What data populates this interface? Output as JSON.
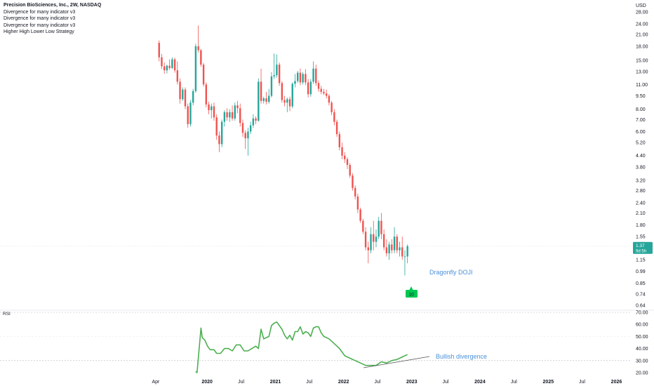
{
  "legend": {
    "title": "Precision BioSciences, Inc., 2W, NASDAQ",
    "indicators": [
      "Divergence for many indicator v3",
      "Divergence for many indicator v3",
      "Divergence for many indicator v3",
      "Higher High Lower Low Strategy"
    ]
  },
  "currency": "USD",
  "price_ticks": [
    "28.00",
    "24.00",
    "21.00",
    "18.00",
    "15.00",
    "13.00",
    "11.00",
    "9.50",
    "8.00",
    "7.00",
    "6.00",
    "5.20",
    "4.40",
    "3.80",
    "3.20",
    "2.80",
    "2.40",
    "2.10",
    "1.80",
    "1.55",
    "1.15",
    "0.99",
    "0.85",
    "0.74",
    "0.64"
  ],
  "price_badge": {
    "value": "1.37",
    "countdown": "9d 5h",
    "color": "#26a69a"
  },
  "rsi": {
    "label": "RSI",
    "ticks": [
      "70.00",
      "60.00",
      "50.00",
      "40.00",
      "30.00",
      "20.00"
    ],
    "line_color": "#4caf50"
  },
  "time_ticks": [
    "Apr",
    "2020",
    "Jul",
    "2021",
    "Jul",
    "2022",
    "Jul",
    "2023",
    "Jul",
    "2024",
    "Jul",
    "2025",
    "Jul",
    "2026"
  ],
  "bold_time_ticks": [
    "2020",
    "2021",
    "2022",
    "2023",
    "2024",
    "2025",
    "2026"
  ],
  "annotations": {
    "doji": "Dragonfly DOJI",
    "divergence": "Bullish divergence",
    "signal_badge": "10",
    "annotation_color": "#4a90d9",
    "signal_color": "#00c853"
  },
  "colors": {
    "up": "#26a69a",
    "down": "#ef5350"
  },
  "chart_data": [
    {
      "type": "candlestick",
      "title": "Precision BioSciences, Inc., 2W, NASDAQ",
      "interval": "2W",
      "y_scale": "log",
      "ylabel": "USD",
      "x_range": [
        "2019-02",
        "2026-05"
      ],
      "y_range": [
        0.62,
        30
      ],
      "last_close": 1.37,
      "candles": [
        {
          "t": "2019-04-19",
          "o": 18.8,
          "h": 19.4,
          "l": 14.8,
          "c": 15.6
        },
        {
          "t": "2019-05-03",
          "o": 15.6,
          "h": 16.3,
          "l": 13.4,
          "c": 13.9
        },
        {
          "t": "2019-05-17",
          "o": 13.9,
          "h": 14.6,
          "l": 12.6,
          "c": 13.2
        },
        {
          "t": "2019-05-31",
          "o": 13.2,
          "h": 14.2,
          "l": 12.7,
          "c": 14.0
        },
        {
          "t": "2019-06-14",
          "o": 14.0,
          "h": 15.2,
          "l": 13.3,
          "c": 13.6
        },
        {
          "t": "2019-06-28",
          "o": 13.6,
          "h": 15.6,
          "l": 13.4,
          "c": 15.2
        },
        {
          "t": "2019-07-12",
          "o": 15.2,
          "h": 15.5,
          "l": 12.8,
          "c": 13.2
        },
        {
          "t": "2019-07-26",
          "o": 13.2,
          "h": 14.8,
          "l": 11.0,
          "c": 11.4
        },
        {
          "t": "2019-08-09",
          "o": 11.4,
          "h": 11.9,
          "l": 8.6,
          "c": 9.1
        },
        {
          "t": "2019-08-23",
          "o": 9.1,
          "h": 10.6,
          "l": 8.9,
          "c": 10.3
        },
        {
          "t": "2019-09-06",
          "o": 10.3,
          "h": 10.6,
          "l": 8.0,
          "c": 8.3
        },
        {
          "t": "2019-09-20",
          "o": 8.3,
          "h": 8.6,
          "l": 6.3,
          "c": 6.6
        },
        {
          "t": "2019-10-04",
          "o": 6.6,
          "h": 9.0,
          "l": 6.4,
          "c": 8.7
        },
        {
          "t": "2019-10-18",
          "o": 8.7,
          "h": 10.4,
          "l": 8.4,
          "c": 10.1
        },
        {
          "t": "2019-11-01",
          "o": 10.1,
          "h": 18.6,
          "l": 9.9,
          "c": 18.0
        },
        {
          "t": "2019-11-15",
          "o": 18.0,
          "h": 23.5,
          "l": 16.6,
          "c": 17.1
        },
        {
          "t": "2019-11-29",
          "o": 17.1,
          "h": 17.4,
          "l": 13.8,
          "c": 14.2
        },
        {
          "t": "2019-12-13",
          "o": 14.2,
          "h": 14.5,
          "l": 10.7,
          "c": 11.0
        },
        {
          "t": "2019-12-27",
          "o": 11.0,
          "h": 11.3,
          "l": 8.2,
          "c": 8.5
        },
        {
          "t": "2020-01-10",
          "o": 8.5,
          "h": 8.8,
          "l": 7.5,
          "c": 7.9
        },
        {
          "t": "2020-01-24",
          "o": 7.9,
          "h": 8.6,
          "l": 7.1,
          "c": 8.3
        },
        {
          "t": "2020-02-07",
          "o": 8.3,
          "h": 8.7,
          "l": 6.9,
          "c": 7.2
        },
        {
          "t": "2020-02-21",
          "o": 7.2,
          "h": 7.5,
          "l": 5.4,
          "c": 5.7
        },
        {
          "t": "2020-03-06",
          "o": 5.7,
          "h": 6.0,
          "l": 4.6,
          "c": 5.1
        },
        {
          "t": "2020-03-20",
          "o": 5.1,
          "h": 7.0,
          "l": 4.9,
          "c": 6.8
        },
        {
          "t": "2020-04-03",
          "o": 6.8,
          "h": 7.9,
          "l": 6.4,
          "c": 7.7
        },
        {
          "t": "2020-04-17",
          "o": 7.7,
          "h": 8.1,
          "l": 6.9,
          "c": 7.2
        },
        {
          "t": "2020-05-01",
          "o": 7.2,
          "h": 8.0,
          "l": 6.8,
          "c": 7.7
        },
        {
          "t": "2020-05-15",
          "o": 7.7,
          "h": 8.4,
          "l": 6.9,
          "c": 7.1
        },
        {
          "t": "2020-05-29",
          "o": 7.1,
          "h": 8.7,
          "l": 6.9,
          "c": 8.4
        },
        {
          "t": "2020-06-12",
          "o": 8.4,
          "h": 8.9,
          "l": 7.6,
          "c": 8.1
        },
        {
          "t": "2020-06-26",
          "o": 8.1,
          "h": 8.6,
          "l": 6.4,
          "c": 6.7
        },
        {
          "t": "2020-07-10",
          "o": 6.7,
          "h": 7.0,
          "l": 5.6,
          "c": 5.9
        },
        {
          "t": "2020-07-24",
          "o": 5.9,
          "h": 6.1,
          "l": 4.8,
          "c": 5.5
        },
        {
          "t": "2020-08-07",
          "o": 5.5,
          "h": 6.3,
          "l": 4.4,
          "c": 6.0
        },
        {
          "t": "2020-08-21",
          "o": 6.0,
          "h": 6.8,
          "l": 5.8,
          "c": 6.5
        },
        {
          "t": "2020-09-04",
          "o": 6.5,
          "h": 7.5,
          "l": 6.3,
          "c": 7.1
        },
        {
          "t": "2020-09-18",
          "o": 7.1,
          "h": 7.3,
          "l": 6.6,
          "c": 6.9
        },
        {
          "t": "2020-10-02",
          "o": 6.9,
          "h": 11.9,
          "l": 6.8,
          "c": 11.4
        },
        {
          "t": "2020-10-16",
          "o": 11.4,
          "h": 13.5,
          "l": 8.6,
          "c": 8.9
        },
        {
          "t": "2020-10-30",
          "o": 8.9,
          "h": 9.4,
          "l": 8.6,
          "c": 9.2
        },
        {
          "t": "2020-11-13",
          "o": 9.2,
          "h": 10.0,
          "l": 8.5,
          "c": 8.8
        },
        {
          "t": "2020-11-27",
          "o": 8.8,
          "h": 10.4,
          "l": 8.6,
          "c": 9.5
        },
        {
          "t": "2020-12-11",
          "o": 9.5,
          "h": 12.9,
          "l": 9.3,
          "c": 12.2
        },
        {
          "t": "2020-12-25",
          "o": 12.2,
          "h": 16.4,
          "l": 11.8,
          "c": 12.4
        },
        {
          "t": "2021-01-08",
          "o": 12.4,
          "h": 16.2,
          "l": 12.0,
          "c": 14.2
        },
        {
          "t": "2021-01-22",
          "o": 14.2,
          "h": 14.6,
          "l": 10.8,
          "c": 11.2
        },
        {
          "t": "2021-02-05",
          "o": 11.2,
          "h": 11.5,
          "l": 8.7,
          "c": 9.0
        },
        {
          "t": "2021-02-19",
          "o": 9.0,
          "h": 9.5,
          "l": 8.3,
          "c": 8.7
        },
        {
          "t": "2021-03-05",
          "o": 8.7,
          "h": 9.3,
          "l": 7.7,
          "c": 9.1
        },
        {
          "t": "2021-03-19",
          "o": 9.1,
          "h": 9.4,
          "l": 7.8,
          "c": 8.3
        },
        {
          "t": "2021-04-02",
          "o": 8.3,
          "h": 11.3,
          "l": 8.1,
          "c": 11.1
        },
        {
          "t": "2021-04-16",
          "o": 11.1,
          "h": 12.6,
          "l": 10.6,
          "c": 11.5
        },
        {
          "t": "2021-04-30",
          "o": 11.5,
          "h": 13.1,
          "l": 11.2,
          "c": 12.8
        },
        {
          "t": "2021-05-14",
          "o": 12.8,
          "h": 13.5,
          "l": 10.9,
          "c": 11.3
        },
        {
          "t": "2021-05-28",
          "o": 11.3,
          "h": 12.9,
          "l": 11.0,
          "c": 12.6
        },
        {
          "t": "2021-06-11",
          "o": 12.6,
          "h": 13.4,
          "l": 10.9,
          "c": 11.3
        },
        {
          "t": "2021-06-25",
          "o": 11.3,
          "h": 11.8,
          "l": 9.3,
          "c": 9.7
        },
        {
          "t": "2021-07-09",
          "o": 9.7,
          "h": 11.8,
          "l": 9.4,
          "c": 11.4
        },
        {
          "t": "2021-07-23",
          "o": 11.4,
          "h": 14.8,
          "l": 11.1,
          "c": 13.5
        },
        {
          "t": "2021-08-06",
          "o": 13.5,
          "h": 14.2,
          "l": 10.8,
          "c": 11.2
        },
        {
          "t": "2021-08-20",
          "o": 11.2,
          "h": 11.6,
          "l": 10.0,
          "c": 10.4
        },
        {
          "t": "2021-09-03",
          "o": 10.4,
          "h": 10.8,
          "l": 9.7,
          "c": 10.0
        },
        {
          "t": "2021-09-17",
          "o": 10.0,
          "h": 10.4,
          "l": 9.6,
          "c": 9.8
        },
        {
          "t": "2021-10-01",
          "o": 9.8,
          "h": 10.3,
          "l": 9.2,
          "c": 9.5
        },
        {
          "t": "2021-10-15",
          "o": 9.5,
          "h": 9.7,
          "l": 8.4,
          "c": 8.7
        },
        {
          "t": "2021-10-29",
          "o": 8.7,
          "h": 8.9,
          "l": 7.4,
          "c": 7.7
        },
        {
          "t": "2021-11-12",
          "o": 7.7,
          "h": 8.0,
          "l": 6.5,
          "c": 6.8
        },
        {
          "t": "2021-11-26",
          "o": 6.8,
          "h": 7.0,
          "l": 5.6,
          "c": 5.8
        },
        {
          "t": "2021-12-10",
          "o": 5.8,
          "h": 6.0,
          "l": 4.7,
          "c": 4.9
        },
        {
          "t": "2021-12-24",
          "o": 4.9,
          "h": 5.2,
          "l": 4.2,
          "c": 4.4
        },
        {
          "t": "2022-01-07",
          "o": 4.4,
          "h": 4.6,
          "l": 4.0,
          "c": 4.2
        },
        {
          "t": "2022-01-21",
          "o": 4.2,
          "h": 4.3,
          "l": 3.7,
          "c": 3.9
        },
        {
          "t": "2022-02-04",
          "o": 3.9,
          "h": 4.0,
          "l": 3.3,
          "c": 3.4
        },
        {
          "t": "2022-02-18",
          "o": 3.4,
          "h": 3.5,
          "l": 2.8,
          "c": 2.9
        },
        {
          "t": "2022-03-04",
          "o": 2.9,
          "h": 3.0,
          "l": 2.5,
          "c": 2.6
        },
        {
          "t": "2022-03-18",
          "o": 2.6,
          "h": 2.7,
          "l": 2.1,
          "c": 2.2
        },
        {
          "t": "2022-04-01",
          "o": 2.2,
          "h": 2.25,
          "l": 1.85,
          "c": 1.9
        },
        {
          "t": "2022-04-15",
          "o": 1.9,
          "h": 1.95,
          "l": 1.6,
          "c": 1.65
        },
        {
          "t": "2022-04-29",
          "o": 1.65,
          "h": 1.75,
          "l": 1.3,
          "c": 1.35
        },
        {
          "t": "2022-05-13",
          "o": 1.35,
          "h": 1.45,
          "l": 1.1,
          "c": 1.3
        },
        {
          "t": "2022-05-27",
          "o": 1.3,
          "h": 1.75,
          "l": 1.25,
          "c": 1.6
        },
        {
          "t": "2022-06-10",
          "o": 1.6,
          "h": 1.9,
          "l": 1.3,
          "c": 1.45
        },
        {
          "t": "2022-06-24",
          "o": 1.45,
          "h": 1.7,
          "l": 1.35,
          "c": 1.55
        },
        {
          "t": "2022-07-08",
          "o": 1.55,
          "h": 2.0,
          "l": 1.5,
          "c": 1.9
        },
        {
          "t": "2022-07-22",
          "o": 1.9,
          "h": 2.1,
          "l": 1.5,
          "c": 1.6
        },
        {
          "t": "2022-08-05",
          "o": 1.6,
          "h": 1.7,
          "l": 1.3,
          "c": 1.35
        },
        {
          "t": "2022-08-19",
          "o": 1.35,
          "h": 1.5,
          "l": 1.2,
          "c": 1.25
        },
        {
          "t": "2022-09-02",
          "o": 1.25,
          "h": 1.45,
          "l": 1.15,
          "c": 1.4
        },
        {
          "t": "2022-09-16",
          "o": 1.4,
          "h": 1.5,
          "l": 1.25,
          "c": 1.3
        },
        {
          "t": "2022-09-30",
          "o": 1.3,
          "h": 1.75,
          "l": 1.25,
          "c": 1.55
        },
        {
          "t": "2022-10-14",
          "o": 1.55,
          "h": 1.6,
          "l": 1.25,
          "c": 1.3
        },
        {
          "t": "2022-10-28",
          "o": 1.3,
          "h": 1.45,
          "l": 1.2,
          "c": 1.35
        },
        {
          "t": "2022-11-11",
          "o": 1.35,
          "h": 1.55,
          "l": 1.15,
          "c": 1.2
        },
        {
          "t": "2022-11-25",
          "o": 1.2,
          "h": 1.3,
          "l": 0.94,
          "c": 1.2
        },
        {
          "t": "2022-12-09",
          "o": 1.2,
          "h": 1.4,
          "l": 1.1,
          "c": 1.37
        }
      ]
    },
    {
      "type": "line",
      "title": "RSI",
      "ylim": [
        18,
        72
      ],
      "levels": [
        70,
        30
      ],
      "series": [
        {
          "name": "RSI",
          "points": [
            [
              "2019-11-01",
              21
            ],
            [
              "2019-11-08",
              20
            ],
            [
              "2019-11-29",
              57
            ],
            [
              "2019-12-06",
              49
            ],
            [
              "2019-12-20",
              47
            ],
            [
              "2020-01-03",
              42
            ],
            [
              "2020-01-17",
              39
            ],
            [
              "2020-02-07",
              39
            ],
            [
              "2020-02-21",
              36
            ],
            [
              "2020-03-13",
              36
            ],
            [
              "2020-04-03",
              40
            ],
            [
              "2020-04-24",
              40
            ],
            [
              "2020-05-15",
              38
            ],
            [
              "2020-06-05",
              43
            ],
            [
              "2020-06-26",
              43
            ],
            [
              "2020-07-17",
              38
            ],
            [
              "2020-08-07",
              38
            ],
            [
              "2020-08-28",
              40
            ],
            [
              "2020-09-18",
              42
            ],
            [
              "2020-10-02",
              40
            ],
            [
              "2020-10-16",
              56
            ],
            [
              "2020-10-30",
              48
            ],
            [
              "2020-11-13",
              49
            ],
            [
              "2020-11-27",
              50
            ],
            [
              "2020-12-11",
              59
            ],
            [
              "2020-12-25",
              61
            ],
            [
              "2021-01-08",
              62
            ],
            [
              "2021-01-22",
              59
            ],
            [
              "2021-02-05",
              56
            ],
            [
              "2021-02-19",
              51
            ],
            [
              "2021-03-05",
              48
            ],
            [
              "2021-03-19",
              51
            ],
            [
              "2021-04-02",
              47
            ],
            [
              "2021-04-16",
              54
            ],
            [
              "2021-04-30",
              54
            ],
            [
              "2021-05-14",
              58
            ],
            [
              "2021-05-28",
              52
            ],
            [
              "2021-06-11",
              54
            ],
            [
              "2021-06-25",
              53
            ],
            [
              "2021-07-09",
              50
            ],
            [
              "2021-07-23",
              57
            ],
            [
              "2021-08-06",
              58
            ],
            [
              "2021-08-20",
              58
            ],
            [
              "2021-09-03",
              53
            ],
            [
              "2021-09-17",
              50
            ],
            [
              "2021-10-15",
              48
            ],
            [
              "2021-11-12",
              44
            ],
            [
              "2021-12-10",
              40
            ],
            [
              "2022-01-07",
              34
            ],
            [
              "2022-02-04",
              32
            ],
            [
              "2022-03-04",
              30
            ],
            [
              "2022-04-01",
              28
            ],
            [
              "2022-04-29",
              26
            ],
            [
              "2022-05-27",
              26
            ],
            [
              "2022-06-24",
              26
            ],
            [
              "2022-07-22",
              29
            ],
            [
              "2022-08-19",
              28
            ],
            [
              "2022-09-16",
              30
            ],
            [
              "2022-10-14",
              31
            ],
            [
              "2022-11-11",
              33
            ],
            [
              "2022-12-09",
              35
            ]
          ]
        }
      ]
    }
  ]
}
